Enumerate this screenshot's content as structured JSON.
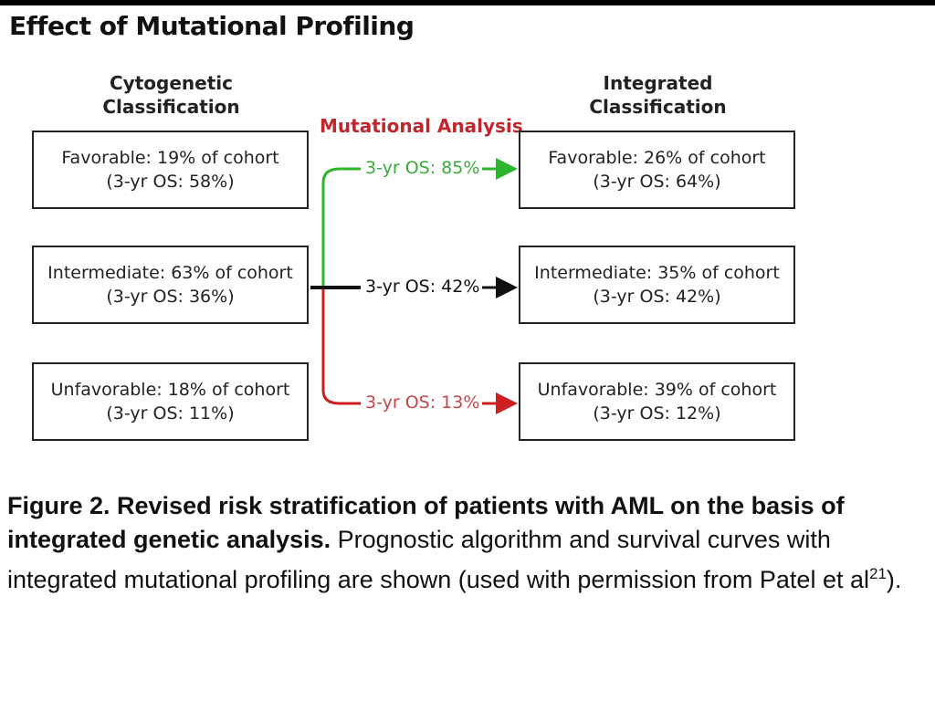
{
  "title": "Effect of Mutational Profiling",
  "left_header": [
    "Cytogenetic",
    "Classification"
  ],
  "right_header": [
    "Integrated",
    "Classification"
  ],
  "middle_header": "Mutational Analysis",
  "left_boxes": [
    {
      "line1": "Favorable: 19% of cohort",
      "line2": "(3-yr OS: 58%)"
    },
    {
      "line1": "Intermediate: 63% of cohort",
      "line2": "(3-yr OS: 36%)"
    },
    {
      "line1": "Unfavorable: 18% of cohort",
      "line2": "(3-yr OS: 11%)"
    }
  ],
  "right_boxes": [
    {
      "line1": "Favorable: 26% of cohort",
      "line2": "(3-yr OS: 64%)"
    },
    {
      "line1": "Intermediate: 35% of cohort",
      "line2": "(3-yr OS: 42%)"
    },
    {
      "line1": "Unfavorable: 39% of cohort",
      "line2": "(3-yr OS: 12%)"
    }
  ],
  "paths": [
    {
      "label": "3-yr OS: 85%",
      "color": "#2db52d"
    },
    {
      "label": "3-yr OS: 42%",
      "color": "#111111"
    },
    {
      "label": "3-yr OS: 13%",
      "color": "#cc1f1f"
    }
  ],
  "caption": {
    "bold": "Figure 2. Revised risk stratification of patients with AML on the basis of integrated genetic analysis.",
    "text": " Prognostic algorithm and survival curves with integrated mutational profiling are shown (used with permission from Patel et al",
    "sup": "21",
    "end": ")."
  }
}
